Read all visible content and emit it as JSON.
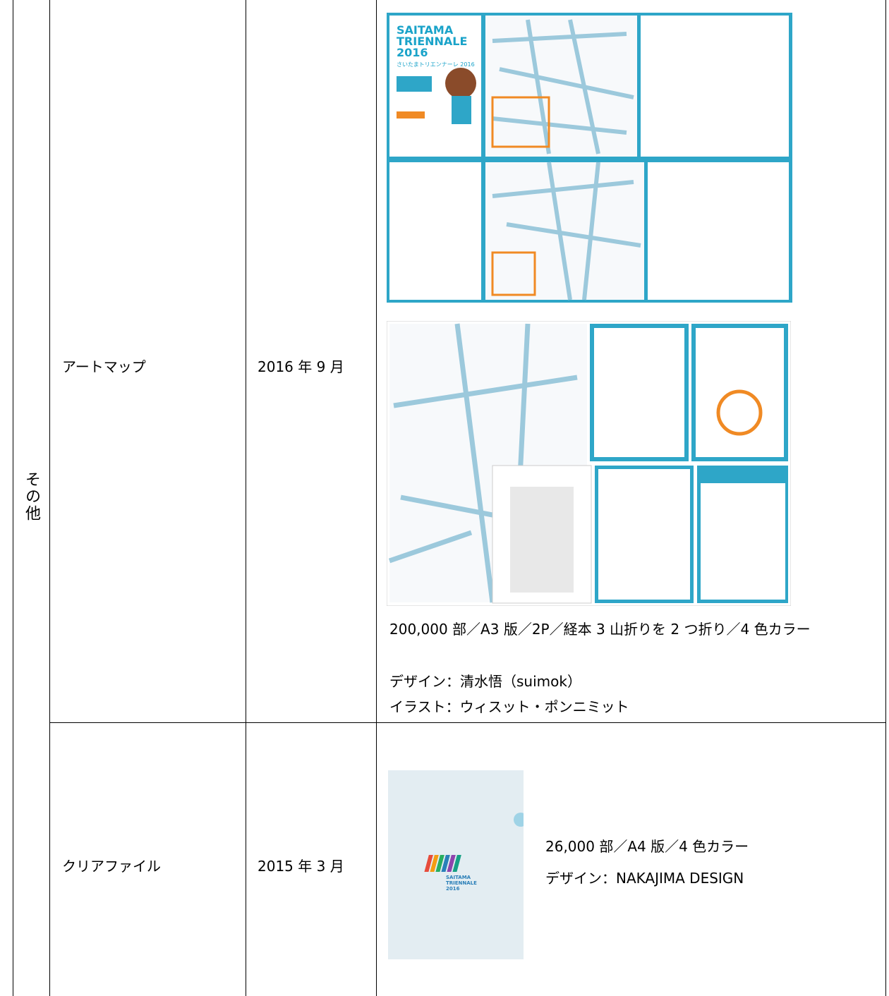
{
  "table": {
    "category": "その他",
    "rows": [
      {
        "item": "アートマップ",
        "date": "2016 年 9 月",
        "details": [
          "200,000 部／A3 版／2P／経本 3 山折りを 2 つ折り／4 色カラー",
          "デザイン：清水悟（suimok）",
          "イラスト：ウィスット・ポンニミット"
        ]
      },
      {
        "item": "クリアファイル",
        "date": "2015 年 3 月",
        "details": [
          "26,000 部／A4 版／4 色カラー",
          "デザイン：NAKAJIMA DESIGN"
        ]
      }
    ]
  },
  "images": {
    "art_map_cover": [
      "SAITAMA",
      "TRIENNALE",
      "2016",
      "さいたまトリエンナーレ 2016"
    ],
    "clear_file": [
      "SAITAMA",
      "TRIENNALE",
      "2016"
    ]
  }
}
